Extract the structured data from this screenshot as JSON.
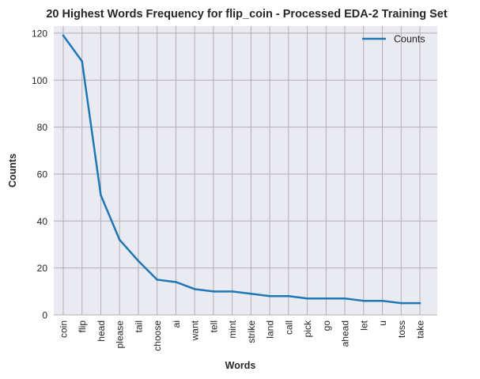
{
  "chart_data": {
    "type": "line",
    "title": "20 Highest Words Frequency for flip_coin - Processed EDA-2 Training Set",
    "xlabel": "Words",
    "ylabel": "Counts",
    "categories": [
      "coin",
      "flip",
      "head",
      "please",
      "tail",
      "choose",
      "ai",
      "want",
      "tell",
      "mint",
      "strike",
      "land",
      "call",
      "pick",
      "go",
      "ahead",
      "let",
      "u",
      "toss",
      "take"
    ],
    "series": [
      {
        "name": "Counts",
        "values": [
          119,
          108,
          51,
          32,
          23,
          15,
          14,
          11,
          10,
          10,
          9,
          8,
          8,
          7,
          7,
          7,
          6,
          6,
          5,
          5
        ]
      }
    ],
    "ylim": [
      0,
      123
    ],
    "yticks": [
      "0",
      "20",
      "40",
      "60",
      "80",
      "100",
      "120"
    ],
    "grid": true,
    "legend_position": "top-right",
    "colors": {
      "line": "#1f77b4",
      "plot_bg": "#eaeaf2",
      "grid": "#b0b0b0",
      "text": "#262626"
    }
  }
}
